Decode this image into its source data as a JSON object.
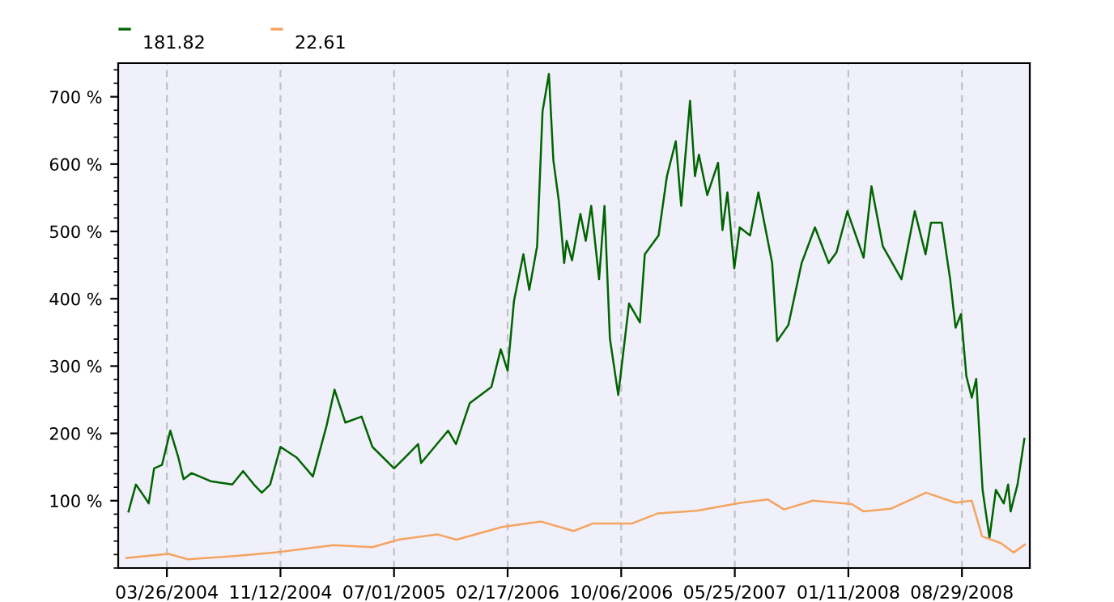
{
  "chart_data": {
    "type": "line",
    "annotations": [
      "181.82",
      "22.61"
    ],
    "series": [
      {
        "color": "#006400",
        "x": [
          "2004-01-08",
          "2004-01-23",
          "2004-02-10",
          "2004-02-18",
          "2004-02-29",
          "2004-03-16",
          "2004-04-02",
          "2004-04-18",
          "2004-04-29",
          "2004-05-15",
          "2004-06-23",
          "2004-08-06",
          "2004-08-28",
          "2004-09-19",
          "2004-10-05",
          "2004-10-22",
          "2004-11-12",
          "2004-12-15",
          "2005-01-17",
          "2005-02-14",
          "2005-03-02",
          "2005-03-24",
          "2005-04-26",
          "2005-05-18",
          "2005-07-01",
          "2005-07-23",
          "2005-08-19",
          "2005-08-25",
          "2005-10-19",
          "2005-11-04",
          "2005-12-02",
          "2006-01-15",
          "2006-02-03",
          "2006-02-17",
          "2006-03-02",
          "2006-03-21",
          "2006-04-02",
          "2006-04-18",
          "2006-04-29",
          "2006-05-12",
          "2006-05-21",
          "2006-06-01",
          "2006-06-12",
          "2006-06-17",
          "2006-06-28",
          "2006-07-15",
          "2006-07-26",
          "2006-08-06",
          "2006-08-22",
          "2006-09-02",
          "2006-09-13",
          "2006-09-30",
          "2006-10-22",
          "2006-11-13",
          "2006-11-23",
          "2006-12-21",
          "2007-01-07",
          "2007-01-25",
          "2007-02-05",
          "2007-02-23",
          "2007-03-05",
          "2007-03-13",
          "2007-03-30",
          "2007-04-21",
          "2007-04-30",
          "2007-05-10",
          "2007-05-24",
          "2007-06-04",
          "2007-06-25",
          "2007-07-12",
          "2007-08-09",
          "2007-08-19",
          "2007-09-11",
          "2007-10-08",
          "2007-11-04",
          "2007-12-02",
          "2007-12-18",
          "2008-01-09",
          "2008-02-11",
          "2008-02-27",
          "2008-03-21",
          "2008-04-28",
          "2008-05-25",
          "2008-06-16",
          "2008-06-27",
          "2008-07-19",
          "2008-08-05",
          "2008-08-16",
          "2008-08-27",
          "2008-09-07",
          "2008-09-18",
          "2008-09-27",
          "2008-10-10",
          "2008-10-24",
          "2008-11-06",
          "2008-11-22",
          "2008-12-01",
          "2008-12-06",
          "2008-12-20",
          "2009-01-03"
        ],
        "values": [
          84,
          124,
          105,
          96,
          148,
          153,
          204,
          165,
          132,
          141,
          129,
          124,
          144,
          124,
          112,
          124,
          180,
          164,
          136,
          212,
          265,
          216,
          225,
          180,
          148,
          164,
          184,
          156,
          204,
          184,
          245,
          269,
          325,
          293,
          397,
          466,
          413,
          478,
          678,
          734,
          606,
          546,
          453,
          486,
          457,
          526,
          486,
          538,
          429,
          538,
          341,
          257,
          393,
          365,
          466,
          494,
          582,
          634,
          538,
          694,
          582,
          614,
          554,
          602,
          502,
          558,
          445,
          506,
          494,
          558,
          453,
          337,
          361,
          453,
          506,
          453,
          469,
          530,
          461,
          567,
          478,
          429,
          530,
          466,
          513,
          513,
          429,
          357,
          377,
          285,
          253,
          281,
          116,
          45,
          116,
          96,
          124,
          84,
          124,
          192
        ]
      },
      {
        "color": "#f4a460",
        "x": [
          "2004-01-04",
          "2004-03-29",
          "2004-05-08",
          "2004-08-15",
          "2004-11-02",
          "2005-02-28",
          "2005-05-18",
          "2005-07-10",
          "2005-09-27",
          "2005-11-05",
          "2006-02-06",
          "2006-04-26",
          "2006-07-01",
          "2006-08-09",
          "2006-10-27",
          "2006-12-19",
          "2007-03-08",
          "2007-06-08",
          "2007-07-31",
          "2007-09-02",
          "2007-10-31",
          "2008-01-18",
          "2008-02-11",
          "2008-04-06",
          "2008-06-17",
          "2008-08-16",
          "2008-09-18",
          "2008-10-09",
          "2008-11-16",
          "2008-12-12",
          "2009-01-04"
        ],
        "values": [
          15,
          21,
          13,
          18,
          23,
          34,
          31,
          42,
          50,
          42,
          61,
          69,
          55,
          66,
          66,
          81,
          85,
          97,
          102,
          87,
          100,
          95,
          84,
          88,
          112,
          97,
          100,
          47,
          37,
          23,
          35
        ]
      }
    ],
    "xlim": [
      "2003-12-18",
      "2009-01-14"
    ],
    "xticks": [
      {
        "value": "2004-03-26",
        "label": "03/26/2004"
      },
      {
        "value": "2004-11-12",
        "label": "11/12/2004"
      },
      {
        "value": "2005-07-01",
        "label": "07/01/2005"
      },
      {
        "value": "2006-02-17",
        "label": "02/17/2006"
      },
      {
        "value": "2006-10-06",
        "label": "10/06/2006"
      },
      {
        "value": "2007-05-25",
        "label": "05/25/2007"
      },
      {
        "value": "2008-01-11",
        "label": "01/11/2008"
      },
      {
        "value": "2008-08-29",
        "label": "08/29/2008"
      }
    ],
    "ylim": [
      0,
      750
    ],
    "yticks": [
      {
        "value": 100,
        "label": "100 %"
      },
      {
        "value": 200,
        "label": "200 %"
      },
      {
        "value": 300,
        "label": "300 %"
      },
      {
        "value": 400,
        "label": "400 %"
      },
      {
        "value": 500,
        "label": "500 %"
      },
      {
        "value": 600,
        "label": "600 %"
      },
      {
        "value": 700,
        "label": "700 %"
      }
    ],
    "grid": "x",
    "line_style": "solid",
    "marker": "none"
  }
}
